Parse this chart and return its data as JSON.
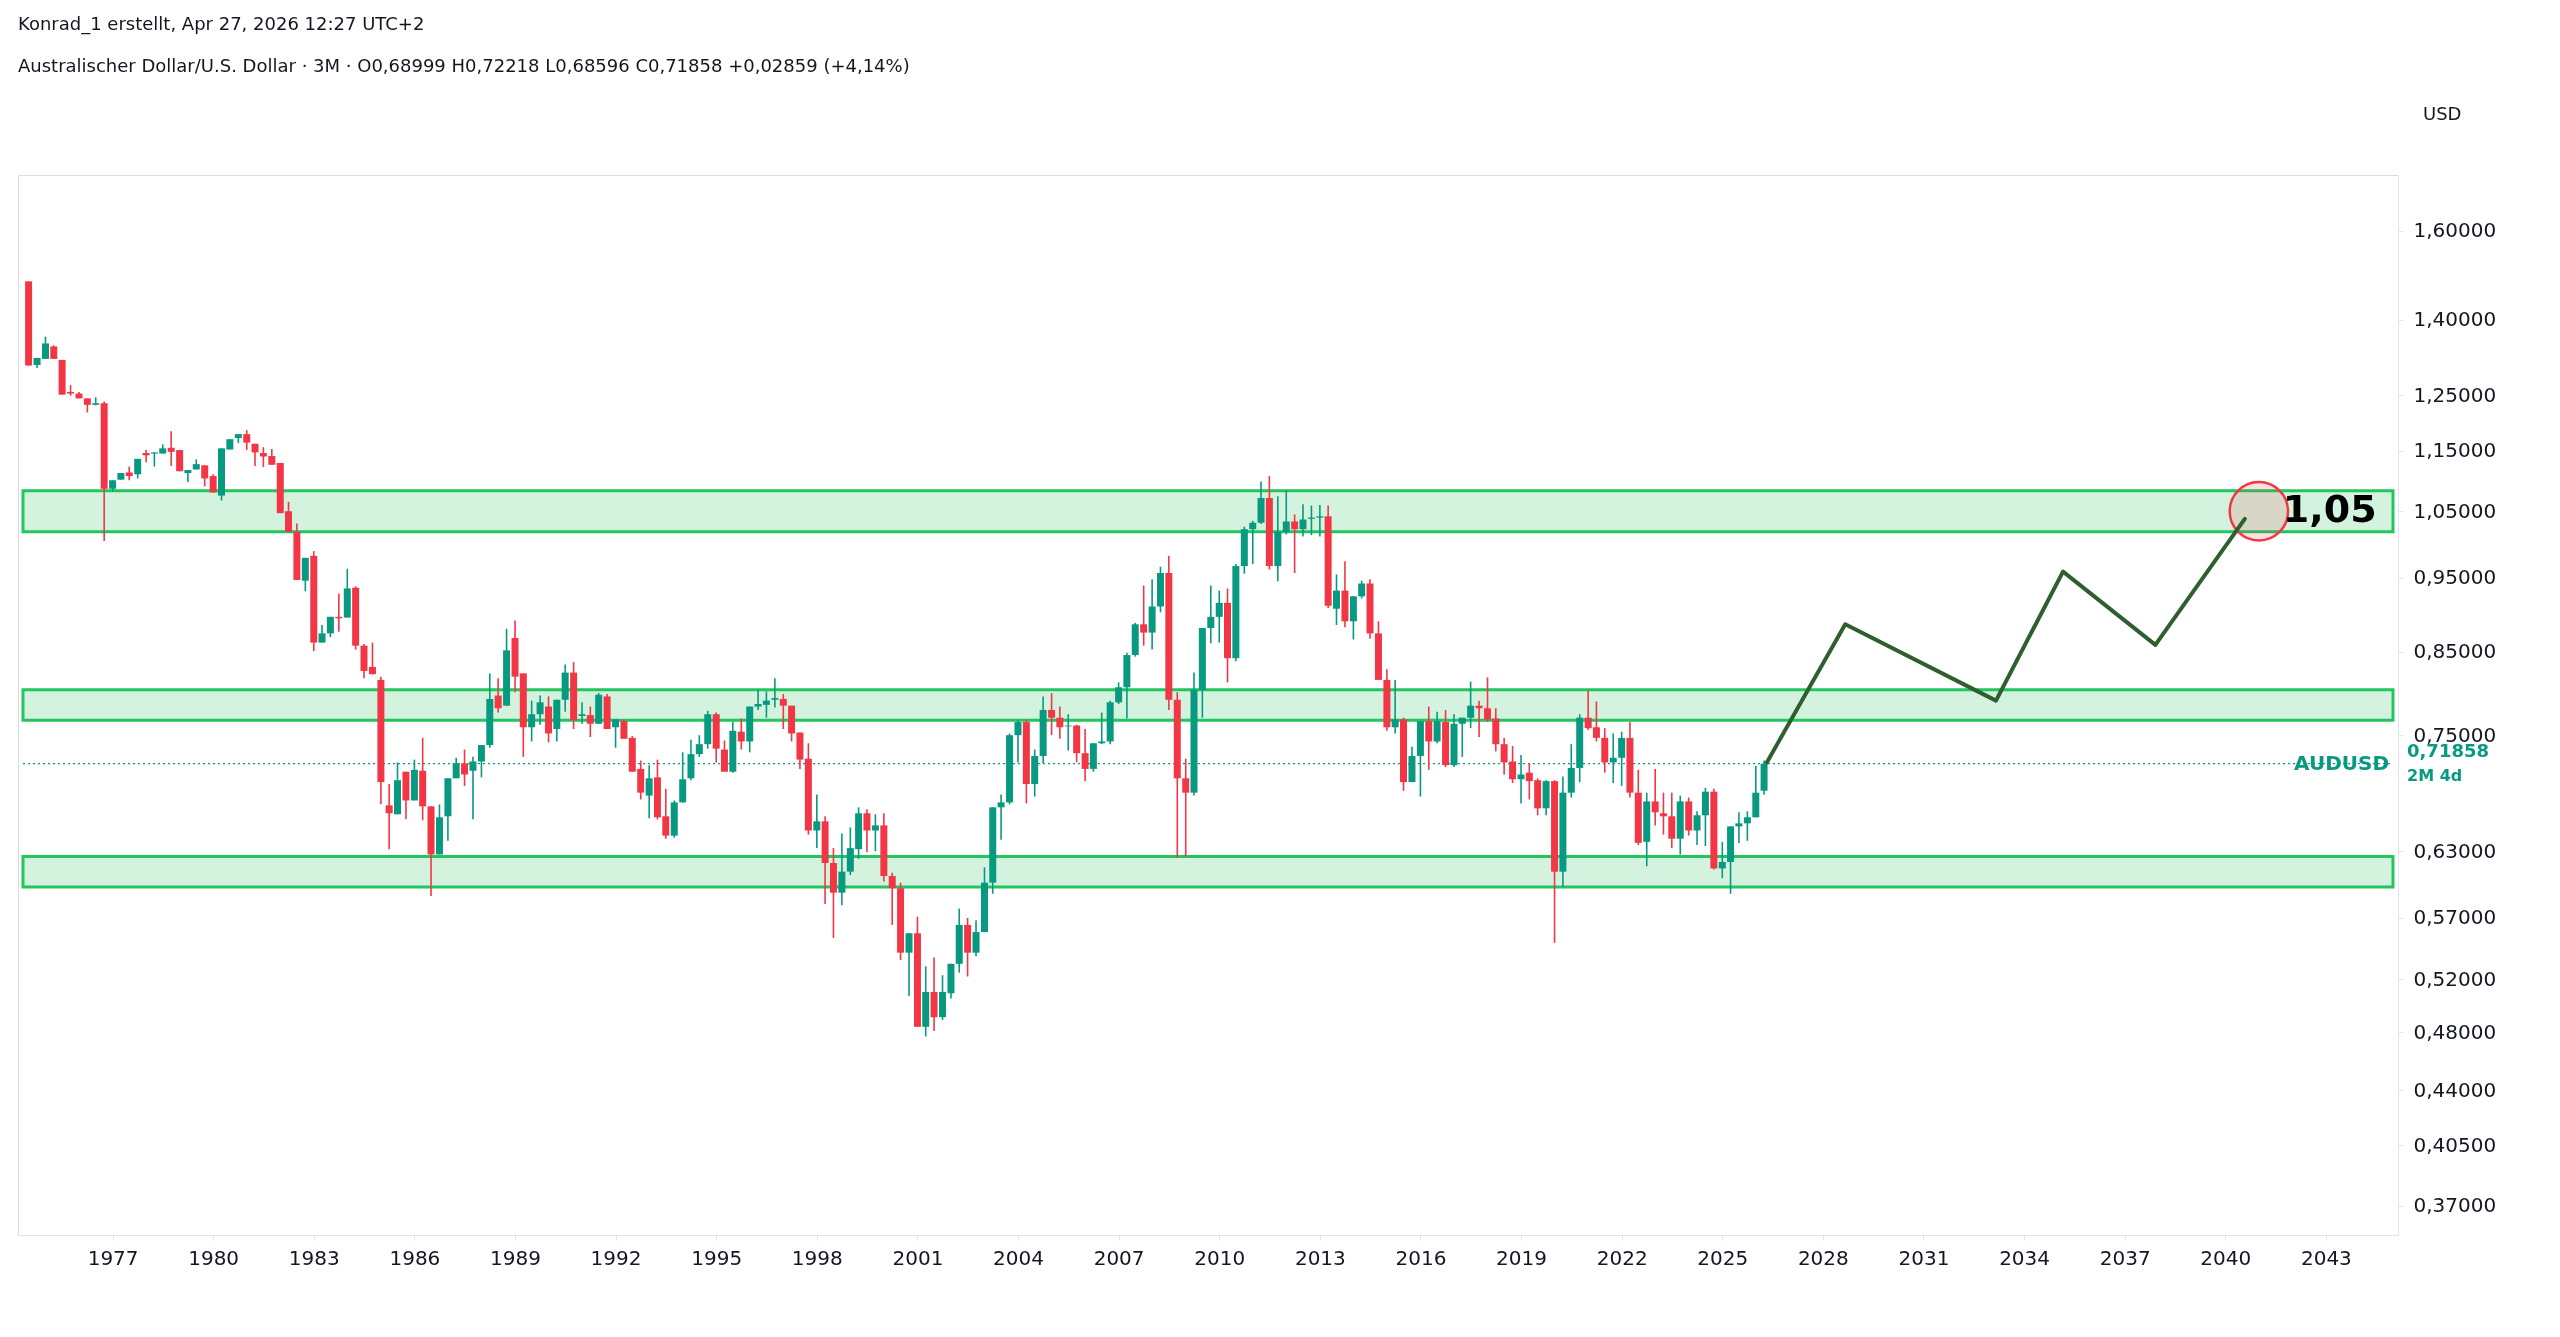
{
  "chart_data": {
    "type": "candlestick",
    "title": "Konrad_1 erstellt, Apr 27, 2026 12:27 UTC+2",
    "subtitle": "Australischer Dollar/U.S. Dollar · 3M · O0,68999 H0,72218 L0,68596 C0,71858 +0,02859 (+4,14%)",
    "x": [
      "1974-07",
      "1974-10",
      "1975-01",
      "1975-04",
      "1975-07",
      "1975-10",
      "1976-01",
      "1976-04",
      "1976-07",
      "1976-10",
      "1977-01",
      "1977-04",
      "1977-07",
      "1977-10",
      "1978-01",
      "1978-04",
      "1978-07",
      "1978-10",
      "1979-01",
      "1979-04",
      "1979-07",
      "1979-10",
      "1980-01",
      "1980-04",
      "1980-07",
      "1980-10",
      "1981-01",
      "1981-04",
      "1981-07",
      "1981-10",
      "1982-01",
      "1982-04",
      "1982-07",
      "1982-10",
      "1983-01",
      "1983-04",
      "1983-07",
      "1983-10",
      "1984-01",
      "1984-04",
      "1984-07",
      "1984-10",
      "1985-01",
      "1985-04",
      "1985-07",
      "1985-10",
      "1986-01",
      "1986-04",
      "1986-07",
      "1986-10",
      "1987-01",
      "1987-04",
      "1987-07",
      "1987-10",
      "1988-01",
      "1988-04",
      "1988-07",
      "1988-10",
      "1989-01",
      "1989-04",
      "1989-07",
      "1989-10",
      "1990-01",
      "1990-04",
      "1990-07",
      "1990-10",
      "1991-01",
      "1991-04",
      "1991-07",
      "1991-10",
      "1992-01",
      "1992-04",
      "1992-07",
      "1992-10",
      "1993-01",
      "1993-04",
      "1993-07",
      "1993-10",
      "1994-01",
      "1994-04",
      "1994-07",
      "1994-10",
      "1995-01",
      "1995-04",
      "1995-07",
      "1995-10",
      "1996-01",
      "1996-04",
      "1996-07",
      "1996-10",
      "1997-01",
      "1997-04",
      "1997-07",
      "1997-10",
      "1998-01",
      "1998-04",
      "1998-07",
      "1998-10",
      "1999-01",
      "1999-04",
      "1999-07",
      "1999-10",
      "2000-01",
      "2000-04",
      "2000-07",
      "2000-10",
      "2001-01",
      "2001-04",
      "2001-07",
      "2001-10",
      "2002-01",
      "2002-04",
      "2002-07",
      "2002-10",
      "2003-01",
      "2003-04",
      "2003-07",
      "2003-10",
      "2004-01",
      "2004-04",
      "2004-07",
      "2004-10",
      "2005-01",
      "2005-04",
      "2005-07",
      "2005-10",
      "2006-01",
      "2006-04",
      "2006-07",
      "2006-10",
      "2007-01",
      "2007-04",
      "2007-07",
      "2007-10",
      "2008-01",
      "2008-04",
      "2008-07",
      "2008-10",
      "2009-01",
      "2009-04",
      "2009-07",
      "2009-10",
      "2010-01",
      "2010-04",
      "2010-07",
      "2010-10",
      "2011-01",
      "2011-04",
      "2011-07",
      "2011-10",
      "2012-01",
      "2012-04",
      "2012-07",
      "2012-10",
      "2013-01",
      "2013-04",
      "2013-07",
      "2013-10",
      "2014-01",
      "2014-04",
      "2014-07",
      "2014-10",
      "2015-01",
      "2015-04",
      "2015-07",
      "2015-10",
      "2016-01",
      "2016-04",
      "2016-07",
      "2016-10",
      "2017-01",
      "2017-04",
      "2017-07",
      "2017-10",
      "2018-01",
      "2018-04",
      "2018-07",
      "2018-10",
      "2019-01",
      "2019-04",
      "2019-07",
      "2019-10",
      "2020-01",
      "2020-04",
      "2020-07",
      "2020-10",
      "2021-01",
      "2021-04",
      "2021-07",
      "2021-10",
      "2022-01",
      "2022-04",
      "2022-07",
      "2022-10",
      "2023-01",
      "2023-04",
      "2023-07",
      "2023-10",
      "2024-01",
      "2024-04",
      "2024-07",
      "2024-10",
      "2025-01",
      "2025-04",
      "2025-07",
      "2025-10",
      "2026-01",
      "2026-04"
    ],
    "ohlc": [
      [
        1.483,
        1.483,
        1.307,
        1.307
      ],
      [
        1.308,
        1.322,
        1.302,
        1.322
      ],
      [
        1.32,
        1.365,
        1.32,
        1.351
      ],
      [
        1.345,
        1.347,
        1.32,
        1.32
      ],
      [
        1.318,
        1.318,
        1.251,
        1.251
      ],
      [
        1.256,
        1.269,
        1.249,
        1.253
      ],
      [
        1.253,
        1.256,
        1.244,
        1.244
      ],
      [
        1.244,
        1.244,
        1.218,
        1.232
      ],
      [
        1.232,
        1.246,
        1.231,
        1.235
      ],
      [
        1.235,
        1.238,
        1.004,
        1.086
      ],
      [
        1.086,
        1.1,
        1.082,
        1.1
      ],
      [
        1.101,
        1.112,
        1.101,
        1.112
      ],
      [
        1.113,
        1.123,
        1.1,
        1.107
      ],
      [
        1.11,
        1.136,
        1.103,
        1.136
      ],
      [
        1.146,
        1.151,
        1.13,
        1.142
      ],
      [
        1.145,
        1.147,
        1.123,
        1.147
      ],
      [
        1.145,
        1.161,
        1.145,
        1.154
      ],
      [
        1.155,
        1.184,
        1.124,
        1.148
      ],
      [
        1.151,
        1.151,
        1.115,
        1.115
      ],
      [
        1.112,
        1.117,
        1.097,
        1.117
      ],
      [
        1.118,
        1.135,
        1.118,
        1.127
      ],
      [
        1.125,
        1.125,
        1.09,
        1.103
      ],
      [
        1.107,
        1.11,
        1.08,
        1.08
      ],
      [
        1.075,
        1.154,
        1.067,
        1.154
      ],
      [
        1.152,
        1.17,
        1.152,
        1.17
      ],
      [
        1.172,
        1.179,
        1.163,
        1.179
      ],
      [
        1.179,
        1.186,
        1.151,
        1.164
      ],
      [
        1.162,
        1.162,
        1.124,
        1.147
      ],
      [
        1.146,
        1.156,
        1.122,
        1.14
      ],
      [
        1.141,
        1.153,
        1.126,
        1.126
      ],
      [
        1.129,
        1.129,
        1.047,
        1.047
      ],
      [
        1.05,
        1.065,
        1.018,
        1.018
      ],
      [
        1.018,
        1.031,
        0.947,
        0.947
      ],
      [
        0.946,
        0.979,
        0.931,
        0.979
      ],
      [
        0.982,
        0.989,
        0.851,
        0.862
      ],
      [
        0.862,
        0.885,
        0.862,
        0.874
      ],
      [
        0.874,
        0.896,
        0.869,
        0.896
      ],
      [
        0.896,
        0.928,
        0.876,
        0.894
      ],
      [
        0.895,
        0.963,
        0.895,
        0.935
      ],
      [
        0.936,
        0.938,
        0.853,
        0.858
      ],
      [
        0.858,
        0.86,
        0.817,
        0.826
      ],
      [
        0.831,
        0.862,
        0.822,
        0.822
      ],
      [
        0.815,
        0.819,
        0.676,
        0.699
      ],
      [
        0.675,
        0.697,
        0.632,
        0.667
      ],
      [
        0.666,
        0.72,
        0.666,
        0.701
      ],
      [
        0.71,
        0.71,
        0.661,
        0.68
      ],
      [
        0.68,
        0.723,
        0.68,
        0.712
      ],
      [
        0.711,
        0.747,
        0.66,
        0.674
      ],
      [
        0.674,
        0.674,
        0.589,
        0.627
      ],
      [
        0.627,
        0.676,
        0.627,
        0.663
      ],
      [
        0.664,
        0.703,
        0.64,
        0.703
      ],
      [
        0.703,
        0.725,
        0.703,
        0.719
      ],
      [
        0.719,
        0.734,
        0.695,
        0.707
      ],
      [
        0.711,
        0.726,
        0.661,
        0.721
      ],
      [
        0.721,
        0.739,
        0.704,
        0.739
      ],
      [
        0.739,
        0.823,
        0.736,
        0.792
      ],
      [
        0.796,
        0.817,
        0.776,
        0.781
      ],
      [
        0.784,
        0.88,
        0.784,
        0.852
      ],
      [
        0.868,
        0.891,
        0.8,
        0.819
      ],
      [
        0.823,
        0.823,
        0.726,
        0.759
      ],
      [
        0.759,
        0.79,
        0.743,
        0.774
      ],
      [
        0.774,
        0.796,
        0.762,
        0.788
      ],
      [
        0.783,
        0.795,
        0.742,
        0.752
      ],
      [
        0.757,
        0.791,
        0.743,
        0.791
      ],
      [
        0.791,
        0.834,
        0.777,
        0.824
      ],
      [
        0.824,
        0.837,
        0.757,
        0.767
      ],
      [
        0.772,
        0.788,
        0.763,
        0.774
      ],
      [
        0.773,
        0.783,
        0.748,
        0.763
      ],
      [
        0.763,
        0.799,
        0.763,
        0.797
      ],
      [
        0.795,
        0.798,
        0.757,
        0.757
      ],
      [
        0.759,
        0.768,
        0.736,
        0.768
      ],
      [
        0.766,
        0.768,
        0.746,
        0.746
      ],
      [
        0.747,
        0.749,
        0.71,
        0.71
      ],
      [
        0.713,
        0.722,
        0.681,
        0.688
      ],
      [
        0.685,
        0.717,
        0.662,
        0.703
      ],
      [
        0.704,
        0.723,
        0.661,
        0.663
      ],
      [
        0.664,
        0.692,
        0.642,
        0.645
      ],
      [
        0.645,
        0.68,
        0.643,
        0.678
      ],
      [
        0.678,
        0.731,
        0.678,
        0.702
      ],
      [
        0.703,
        0.745,
        0.701,
        0.729
      ],
      [
        0.729,
        0.75,
        0.726,
        0.74
      ],
      [
        0.74,
        0.778,
        0.735,
        0.774
      ],
      [
        0.774,
        0.776,
        0.72,
        0.735
      ],
      [
        0.734,
        0.744,
        0.71,
        0.71
      ],
      [
        0.71,
        0.765,
        0.709,
        0.755
      ],
      [
        0.754,
        0.769,
        0.734,
        0.743
      ],
      [
        0.743,
        0.783,
        0.731,
        0.783
      ],
      [
        0.783,
        0.803,
        0.779,
        0.786
      ],
      [
        0.785,
        0.801,
        0.77,
        0.79
      ],
      [
        0.791,
        0.817,
        0.782,
        0.793
      ],
      [
        0.792,
        0.798,
        0.757,
        0.784
      ],
      [
        0.784,
        0.784,
        0.743,
        0.752
      ],
      [
        0.753,
        0.753,
        0.713,
        0.723
      ],
      [
        0.724,
        0.741,
        0.646,
        0.65
      ],
      [
        0.65,
        0.686,
        0.633,
        0.659
      ],
      [
        0.659,
        0.664,
        0.582,
        0.619
      ],
      [
        0.619,
        0.633,
        0.553,
        0.592
      ],
      [
        0.592,
        0.647,
        0.581,
        0.611
      ],
      [
        0.611,
        0.653,
        0.608,
        0.633
      ],
      [
        0.632,
        0.673,
        0.623,
        0.667
      ],
      [
        0.667,
        0.671,
        0.629,
        0.65
      ],
      [
        0.65,
        0.666,
        0.63,
        0.655
      ],
      [
        0.655,
        0.667,
        0.602,
        0.607
      ],
      [
        0.607,
        0.61,
        0.564,
        0.596
      ],
      [
        0.596,
        0.601,
        0.535,
        0.541
      ],
      [
        0.541,
        0.557,
        0.507,
        0.557
      ],
      [
        0.557,
        0.571,
        0.484,
        0.484
      ],
      [
        0.484,
        0.53,
        0.477,
        0.51
      ],
      [
        0.51,
        0.537,
        0.481,
        0.491
      ],
      [
        0.491,
        0.523,
        0.489,
        0.51
      ],
      [
        0.509,
        0.532,
        0.505,
        0.532
      ],
      [
        0.532,
        0.578,
        0.525,
        0.564
      ],
      [
        0.564,
        0.57,
        0.522,
        0.541
      ],
      [
        0.541,
        0.568,
        0.538,
        0.558
      ],
      [
        0.558,
        0.615,
        0.558,
        0.601
      ],
      [
        0.601,
        0.673,
        0.591,
        0.673
      ],
      [
        0.673,
        0.686,
        0.641,
        0.678
      ],
      [
        0.678,
        0.752,
        0.676,
        0.75
      ],
      [
        0.75,
        0.767,
        0.72,
        0.765
      ],
      [
        0.765,
        0.768,
        0.677,
        0.697
      ],
      [
        0.697,
        0.734,
        0.684,
        0.727
      ],
      [
        0.727,
        0.795,
        0.719,
        0.779
      ],
      [
        0.779,
        0.799,
        0.75,
        0.77
      ],
      [
        0.77,
        0.783,
        0.746,
        0.759
      ],
      [
        0.76,
        0.774,
        0.733,
        0.761
      ],
      [
        0.761,
        0.762,
        0.72,
        0.73
      ],
      [
        0.73,
        0.757,
        0.7,
        0.713
      ],
      [
        0.713,
        0.741,
        0.71,
        0.741
      ],
      [
        0.741,
        0.776,
        0.74,
        0.743
      ],
      [
        0.743,
        0.79,
        0.74,
        0.788
      ],
      [
        0.788,
        0.812,
        0.786,
        0.806
      ],
      [
        0.806,
        0.849,
        0.769,
        0.846
      ],
      [
        0.846,
        0.888,
        0.844,
        0.886
      ],
      [
        0.886,
        0.939,
        0.858,
        0.875
      ],
      [
        0.875,
        0.948,
        0.853,
        0.91
      ],
      [
        0.91,
        0.966,
        0.902,
        0.957
      ],
      [
        0.957,
        0.982,
        0.779,
        0.791
      ],
      [
        0.791,
        0.8,
        0.624,
        0.703
      ],
      [
        0.703,
        0.724,
        0.625,
        0.688
      ],
      [
        0.688,
        0.824,
        0.685,
        0.803
      ],
      [
        0.803,
        0.881,
        0.77,
        0.881
      ],
      [
        0.881,
        0.939,
        0.861,
        0.896
      ],
      [
        0.896,
        0.932,
        0.862,
        0.915
      ],
      [
        0.915,
        0.935,
        0.812,
        0.842
      ],
      [
        0.842,
        0.97,
        0.838,
        0.967
      ],
      [
        0.967,
        1.026,
        0.956,
        1.022
      ],
      [
        1.022,
        1.035,
        0.97,
        1.032
      ],
      [
        1.032,
        1.098,
        1.03,
        1.071
      ],
      [
        1.071,
        1.107,
        0.962,
        0.967
      ],
      [
        0.967,
        1.074,
        0.945,
        1.018
      ],
      [
        1.018,
        1.084,
        1.014,
        1.034
      ],
      [
        1.034,
        1.045,
        0.957,
        1.022
      ],
      [
        1.022,
        1.061,
        1.011,
        1.037
      ],
      [
        1.038,
        1.059,
        1.013,
        1.04
      ],
      [
        1.04,
        1.06,
        1.011,
        1.042
      ],
      [
        1.042,
        1.059,
        0.908,
        0.911
      ],
      [
        0.907,
        0.955,
        0.885,
        0.932
      ],
      [
        0.932,
        0.974,
        0.882,
        0.89
      ],
      [
        0.89,
        0.924,
        0.866,
        0.924
      ],
      [
        0.924,
        0.946,
        0.921,
        0.942
      ],
      [
        0.942,
        0.948,
        0.867,
        0.874
      ],
      [
        0.874,
        0.89,
        0.815,
        0.815
      ],
      [
        0.815,
        0.828,
        0.755,
        0.759
      ],
      [
        0.759,
        0.815,
        0.752,
        0.768
      ],
      [
        0.768,
        0.77,
        0.69,
        0.699
      ],
      [
        0.699,
        0.737,
        0.699,
        0.727
      ],
      [
        0.727,
        0.766,
        0.684,
        0.766
      ],
      [
        0.766,
        0.783,
        0.712,
        0.743
      ],
      [
        0.743,
        0.777,
        0.741,
        0.766
      ],
      [
        0.765,
        0.779,
        0.715,
        0.717
      ],
      [
        0.717,
        0.774,
        0.715,
        0.763
      ],
      [
        0.763,
        0.77,
        0.726,
        0.77
      ],
      [
        0.77,
        0.813,
        0.758,
        0.784
      ],
      [
        0.784,
        0.79,
        0.748,
        0.781
      ],
      [
        0.781,
        0.818,
        0.765,
        0.768
      ],
      [
        0.769,
        0.781,
        0.732,
        0.74
      ],
      [
        0.74,
        0.747,
        0.707,
        0.72
      ],
      [
        0.721,
        0.738,
        0.698,
        0.702
      ],
      [
        0.702,
        0.728,
        0.677,
        0.707
      ],
      [
        0.709,
        0.719,
        0.681,
        0.7
      ],
      [
        0.701,
        0.703,
        0.665,
        0.672
      ],
      [
        0.672,
        0.701,
        0.665,
        0.7
      ],
      [
        0.7,
        0.701,
        0.549,
        0.611
      ],
      [
        0.611,
        0.705,
        0.597,
        0.688
      ],
      [
        0.688,
        0.74,
        0.683,
        0.714
      ],
      [
        0.714,
        0.774,
        0.699,
        0.77
      ],
      [
        0.77,
        0.802,
        0.756,
        0.758
      ],
      [
        0.759,
        0.789,
        0.743,
        0.747
      ],
      [
        0.747,
        0.758,
        0.709,
        0.72
      ],
      [
        0.72,
        0.752,
        0.698,
        0.725
      ],
      [
        0.725,
        0.754,
        0.695,
        0.747
      ],
      [
        0.747,
        0.765,
        0.683,
        0.688
      ],
      [
        0.688,
        0.712,
        0.636,
        0.638
      ],
      [
        0.639,
        0.688,
        0.616,
        0.679
      ],
      [
        0.679,
        0.713,
        0.655,
        0.668
      ],
      [
        0.667,
        0.688,
        0.646,
        0.664
      ],
      [
        0.664,
        0.688,
        0.633,
        0.642
      ],
      [
        0.642,
        0.685,
        0.627,
        0.679
      ],
      [
        0.679,
        0.683,
        0.645,
        0.65
      ],
      [
        0.65,
        0.669,
        0.636,
        0.665
      ],
      [
        0.665,
        0.693,
        0.635,
        0.689
      ],
      [
        0.689,
        0.692,
        0.613,
        0.614
      ],
      [
        0.614,
        0.639,
        0.605,
        0.62
      ],
      [
        0.62,
        0.654,
        0.591,
        0.654
      ],
      [
        0.654,
        0.668,
        0.638,
        0.657
      ],
      [
        0.657,
        0.669,
        0.64,
        0.663
      ],
      [
        0.663,
        0.716,
        0.663,
        0.688
      ],
      [
        0.68999,
        0.72218,
        0.68596,
        0.71858
      ]
    ],
    "series": [
      {
        "type": "line",
        "color": "#2f5f2f",
        "x": [
          "2026-05",
          "2028-09",
          "2033-03",
          "2035-03",
          "2037-12",
          "2040-08"
        ],
        "values": [
          0.72,
          0.886,
          0.79,
          0.959,
          0.859,
          1.038
        ]
      },
      {
        "type": "scatter",
        "color": "#f23645",
        "marker": "circle",
        "x": [
          "2041-01"
        ],
        "values": [
          1.05
        ]
      }
    ],
    "log": "y",
    "xlim": [
      "1974-05",
      "2045-01"
    ],
    "xticks": [
      "1977",
      "1980",
      "1983",
      "1986",
      "1989",
      "1992",
      "1995",
      "1998",
      "2001",
      "2004",
      "2007",
      "2010",
      "2013",
      "2016",
      "2019",
      "2022",
      "2025",
      "2028",
      "2031",
      "2034",
      "2037",
      "2040",
      "2043"
    ],
    "ylim": [
      0.354,
      1.74
    ],
    "yticks": [
      {
        "value": 0.37,
        "label": "0,37000"
      },
      {
        "value": 0.405,
        "label": "0,40500"
      },
      {
        "value": 0.44,
        "label": "0,44000"
      },
      {
        "value": 0.48,
        "label": "0,48000"
      },
      {
        "value": 0.52,
        "label": "0,52000"
      },
      {
        "value": 0.57,
        "label": "0,57000"
      },
      {
        "value": 0.63,
        "label": "0,63000"
      },
      {
        "value": 0.75,
        "label": "0,75000"
      },
      {
        "value": 0.85,
        "label": "0,85000"
      },
      {
        "value": 0.95,
        "label": "0,95000"
      },
      {
        "value": 1.05,
        "label": "1,05000"
      },
      {
        "value": 1.15,
        "label": "1,15000"
      },
      {
        "value": 1.25,
        "label": "1,25000"
      },
      {
        "value": 1.4,
        "label": "1,40000"
      },
      {
        "value": 1.6,
        "label": "1,60000"
      }
    ],
    "bands": [
      {
        "axis": "y",
        "from": 1.018,
        "to": 1.083,
        "color": "#22c55e"
      },
      {
        "axis": "y",
        "from": 0.767,
        "to": 0.803,
        "color": "#22c55e"
      },
      {
        "axis": "y",
        "from": 0.597,
        "to": 0.625,
        "color": "#22c55e"
      }
    ],
    "ref_lines": [
      {
        "axis": "y",
        "value": 0.71858,
        "label": "AUDUSD",
        "color": "#089981",
        "line_style": "dotted"
      }
    ],
    "annotations": [
      {
        "text": "1,05",
        "x": "2041-01",
        "y": 1.05
      },
      "USD",
      "0,71858",
      "2M 4d"
    ],
    "grid": false,
    "legend": false
  }
}
